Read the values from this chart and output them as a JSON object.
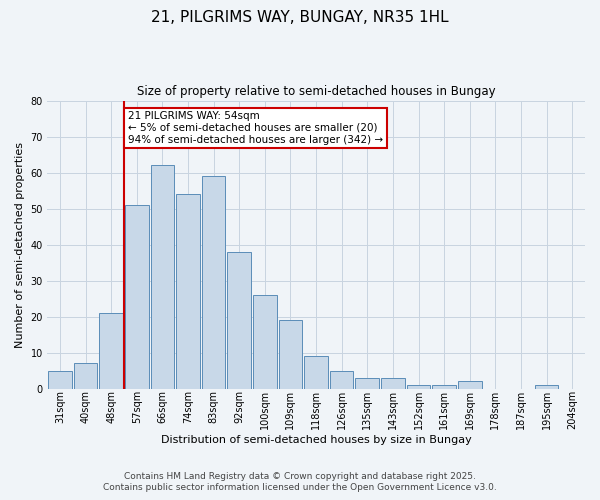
{
  "title": "21, PILGRIMS WAY, BUNGAY, NR35 1HL",
  "subtitle": "Size of property relative to semi-detached houses in Bungay",
  "xlabel": "Distribution of semi-detached houses by size in Bungay",
  "ylabel": "Number of semi-detached properties",
  "categories": [
    "31sqm",
    "40sqm",
    "48sqm",
    "57sqm",
    "66sqm",
    "74sqm",
    "83sqm",
    "92sqm",
    "100sqm",
    "109sqm",
    "118sqm",
    "126sqm",
    "135sqm",
    "143sqm",
    "152sqm",
    "161sqm",
    "169sqm",
    "178sqm",
    "187sqm",
    "195sqm",
    "204sqm"
  ],
  "values": [
    5,
    7,
    21,
    51,
    62,
    54,
    59,
    38,
    26,
    19,
    9,
    5,
    3,
    3,
    1,
    1,
    2,
    0,
    0,
    1,
    0
  ],
  "bar_color": "#c8d8e8",
  "bar_edge_color": "#5b8db8",
  "ylim": [
    0,
    80
  ],
  "yticks": [
    0,
    10,
    20,
    30,
    40,
    50,
    60,
    70,
    80
  ],
  "vline_x_index": 3,
  "vline_color": "#cc0000",
  "annotation_text": "21 PILGRIMS WAY: 54sqm\n← 5% of semi-detached houses are smaller (20)\n94% of semi-detached houses are larger (342) →",
  "annotation_box_color": "#ffffff",
  "annotation_box_edge_color": "#cc0000",
  "footer_line1": "Contains HM Land Registry data © Crown copyright and database right 2025.",
  "footer_line2": "Contains public sector information licensed under the Open Government Licence v3.0.",
  "bg_color": "#f0f4f8",
  "grid_color": "#c8d4e0",
  "title_fontsize": 11,
  "subtitle_fontsize": 8.5,
  "xlabel_fontsize": 8,
  "ylabel_fontsize": 8,
  "tick_fontsize": 7,
  "footer_fontsize": 6.5,
  "annot_fontsize": 7.5
}
